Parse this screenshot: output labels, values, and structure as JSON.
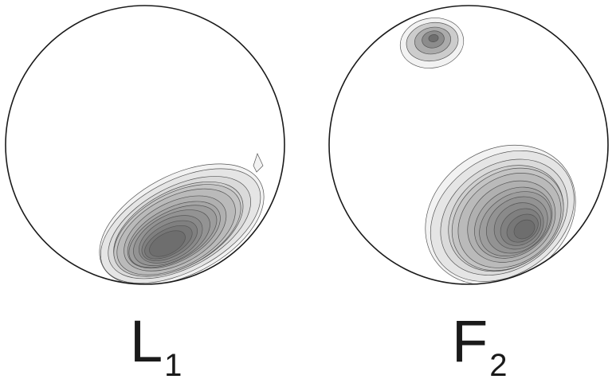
{
  "nets": [
    {
      "id": "L1",
      "label_main": "L",
      "label_sub": "1"
    },
    {
      "id": "F2",
      "label_main": "F",
      "label_sub": "2"
    }
  ],
  "colors": {
    "outline": "#1a1a1a",
    "contour_line": "#555555",
    "fill_light": "#f2f2f2",
    "fill_dark": "#6e6e6e"
  }
}
